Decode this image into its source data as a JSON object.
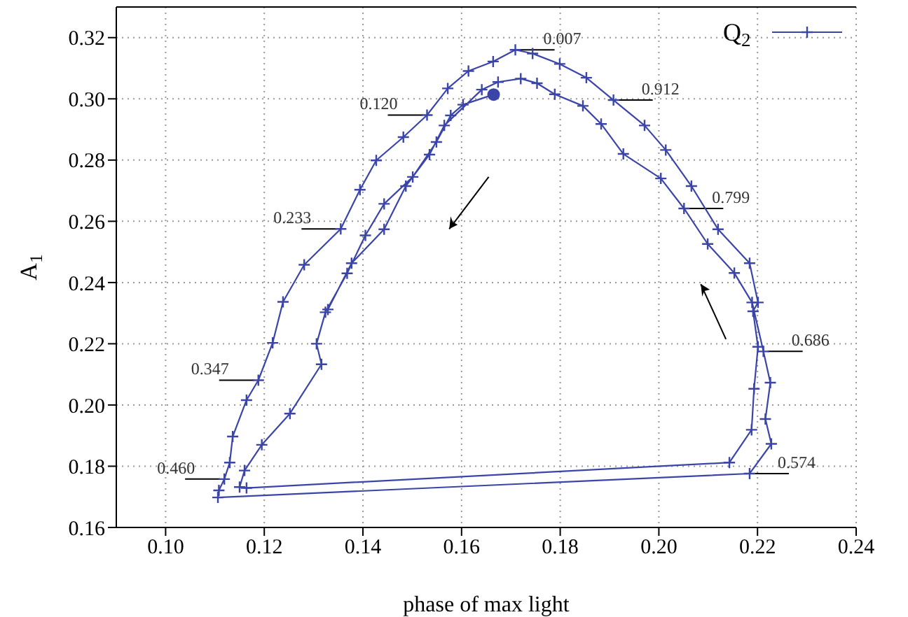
{
  "chart_data": {
    "type": "line",
    "xlabel": "phase of max light",
    "ylabel": "A$_{1}$",
    "xlim": [
      0.09,
      0.24
    ],
    "xticks": [
      {
        "value": 0.1,
        "label": "0.10"
      },
      0.12,
      0.14,
      0.16,
      0.18,
      {
        "value": 0.2,
        "label": "0.20"
      },
      0.22,
      0.24
    ],
    "ylim": [
      0.16,
      0.33
    ],
    "yticks": [
      0.16,
      0.18,
      {
        "value": 0.2,
        "label": "0.20"
      },
      0.22,
      0.24,
      0.26,
      0.28,
      {
        "value": 0.3,
        "label": "0.30"
      },
      0.32
    ],
    "grid": true,
    "legend": "top right",
    "series": [
      {
        "name": "Q$_{2}$",
        "type": "line",
        "marker": "cross",
        "line_style": "solid",
        "color": "#3b45a8",
        "x": [
          0.1665,
          0.1603,
          0.1578,
          0.1549,
          0.1501,
          0.1443,
          0.1405,
          0.1368,
          0.1324,
          0.1306,
          0.1316,
          0.1252,
          0.1195,
          0.116,
          0.115,
          0.1164,
          0.2143,
          0.2188,
          0.2193,
          0.2201,
          0.2191,
          0.2201,
          0.2184,
          0.212,
          0.2066,
          0.2014,
          0.1971,
          0.1908,
          0.1853,
          0.1799,
          0.1744,
          0.1709,
          0.1664,
          0.1614,
          0.1572,
          0.153,
          0.1482,
          0.1427,
          0.1394,
          0.1355,
          0.1281,
          0.1238,
          0.1217,
          0.1188,
          0.1164,
          0.1136,
          0.113,
          0.1119,
          0.1108,
          0.1106,
          0.2184,
          0.2228,
          0.2216,
          0.2226,
          0.2212,
          0.2189,
          0.2153,
          0.2099,
          0.2051,
          0.2004,
          0.1928,
          0.1883,
          0.1846,
          0.1789,
          0.1753,
          0.172,
          0.1674,
          0.1641,
          0.1565,
          0.1535,
          0.1487,
          0.1443,
          0.1377,
          0.1329
        ],
        "values": [
          0.3014,
          0.2981,
          0.2946,
          0.2859,
          0.2745,
          0.2657,
          0.2554,
          0.243,
          0.2303,
          0.22,
          0.2133,
          0.1972,
          0.187,
          0.1786,
          0.1732,
          0.1729,
          0.1812,
          0.1919,
          0.2053,
          0.219,
          0.2306,
          0.2335,
          0.2463,
          0.2574,
          0.2715,
          0.2833,
          0.2913,
          0.2996,
          0.3069,
          0.3114,
          0.3148,
          0.316,
          0.3122,
          0.3091,
          0.3034,
          0.2947,
          0.2875,
          0.2799,
          0.2703,
          0.2575,
          0.2458,
          0.2337,
          0.2203,
          0.2081,
          0.2016,
          0.1897,
          0.1812,
          0.1758,
          0.1721,
          0.1698,
          0.1776,
          0.1873,
          0.1954,
          0.2073,
          0.2175,
          0.2335,
          0.2431,
          0.2526,
          0.2642,
          0.274,
          0.282,
          0.2918,
          0.2977,
          0.3015,
          0.3051,
          0.3066,
          0.3055,
          0.303,
          0.2913,
          0.2818,
          0.2715,
          0.2574,
          0.2463,
          0.2312
        ]
      },
      {
        "type": "scatter",
        "marker": "circle",
        "color": "#3b45a8",
        "x": [
          0.1665
        ],
        "values": [
          0.3014
        ]
      }
    ],
    "annotations": [
      {
        "text": "0.007",
        "x": 0.1709,
        "y": 0.316
      },
      {
        "text": "0.120",
        "x": 0.153,
        "y": 0.2947
      },
      {
        "text": "0.233",
        "x": 0.1355,
        "y": 0.2575
      },
      {
        "text": "0.347",
        "x": 0.1188,
        "y": 0.2081
      },
      {
        "text": "0.460",
        "x": 0.1119,
        "y": 0.1758
      },
      {
        "text": "0.574",
        "x": 0.2184,
        "y": 0.1776
      },
      {
        "text": "0.686",
        "x": 0.2212,
        "y": 0.2175
      },
      {
        "text": "0.799",
        "x": 0.2051,
        "y": 0.2642
      },
      {
        "text": "0.912",
        "x": 0.1908,
        "y": 0.2996
      }
    ]
  }
}
